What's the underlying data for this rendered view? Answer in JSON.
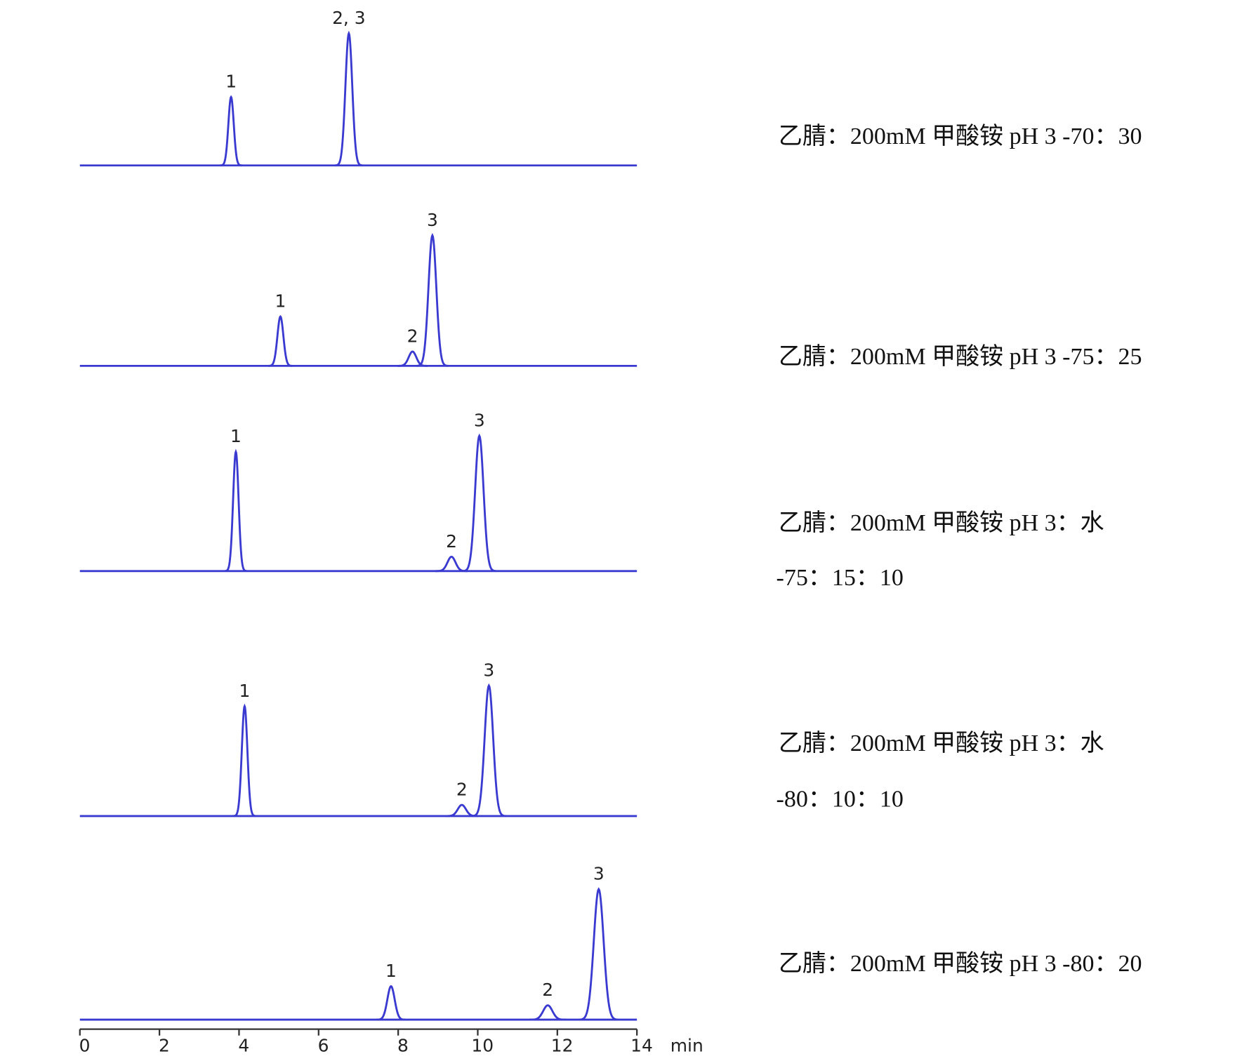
{
  "chart_data": [
    {
      "type": "chromatogram",
      "color": "#3a3ad0",
      "xlim": [
        0,
        14
      ],
      "ylim": [
        0,
        200
      ],
      "condition": [
        "乙腈：200mM  甲酸铵  pH 3 -70：30"
      ],
      "peaks": [
        {
          "label": "1",
          "x": 3.8,
          "height": 86
        },
        {
          "label": "2, 3",
          "x": 6.76,
          "height": 166
        }
      ]
    },
    {
      "type": "chromatogram",
      "color": "#3a3ad0",
      "xlim": [
        0,
        14
      ],
      "ylim": [
        0,
        200
      ],
      "condition": [
        "乙腈：200mM  甲酸铵  pH 3 -75：25"
      ],
      "peaks": [
        {
          "label": "1",
          "x": 5.04,
          "height": 62
        },
        {
          "label": "2",
          "x": 8.36,
          "height": 18
        },
        {
          "label": "3",
          "x": 8.86,
          "height": 164
        }
      ]
    },
    {
      "type": "chromatogram",
      "color": "#3a3ad0",
      "xlim": [
        0,
        14
      ],
      "ylim": [
        0,
        200
      ],
      "condition": [
        "乙腈：200mM 甲酸铵  pH 3：水",
        "-75：15：10"
      ],
      "peaks": [
        {
          "label": "1",
          "x": 3.92,
          "height": 150
        },
        {
          "label": "2",
          "x": 9.34,
          "height": 18
        },
        {
          "label": "3",
          "x": 10.04,
          "height": 170
        }
      ]
    },
    {
      "type": "chromatogram",
      "color": "#3a3ad0",
      "xlim": [
        0,
        14
      ],
      "ylim": [
        0,
        200
      ],
      "condition": [
        "乙腈：200mM 甲酸铵  pH 3：水",
        "-80：10：10"
      ],
      "peaks": [
        {
          "label": "1",
          "x": 4.14,
          "height": 138
        },
        {
          "label": "2",
          "x": 9.6,
          "height": 14
        },
        {
          "label": "3",
          "x": 10.28,
          "height": 164
        }
      ]
    },
    {
      "type": "chromatogram",
      "color": "#3a3ad0",
      "xlim": [
        0,
        14
      ],
      "ylim": [
        0,
        200
      ],
      "condition": [
        "乙腈：200mM 甲酸铵  pH 3 -80：20"
      ],
      "xticks": [
        0,
        2,
        4,
        6,
        8,
        10,
        12,
        14
      ],
      "xlabel": "min",
      "peaks": [
        {
          "label": "1",
          "x": 7.82,
          "height": 42
        },
        {
          "label": "2",
          "x": 11.76,
          "height": 18
        },
        {
          "label": "3",
          "x": 13.04,
          "height": 164
        }
      ]
    }
  ]
}
